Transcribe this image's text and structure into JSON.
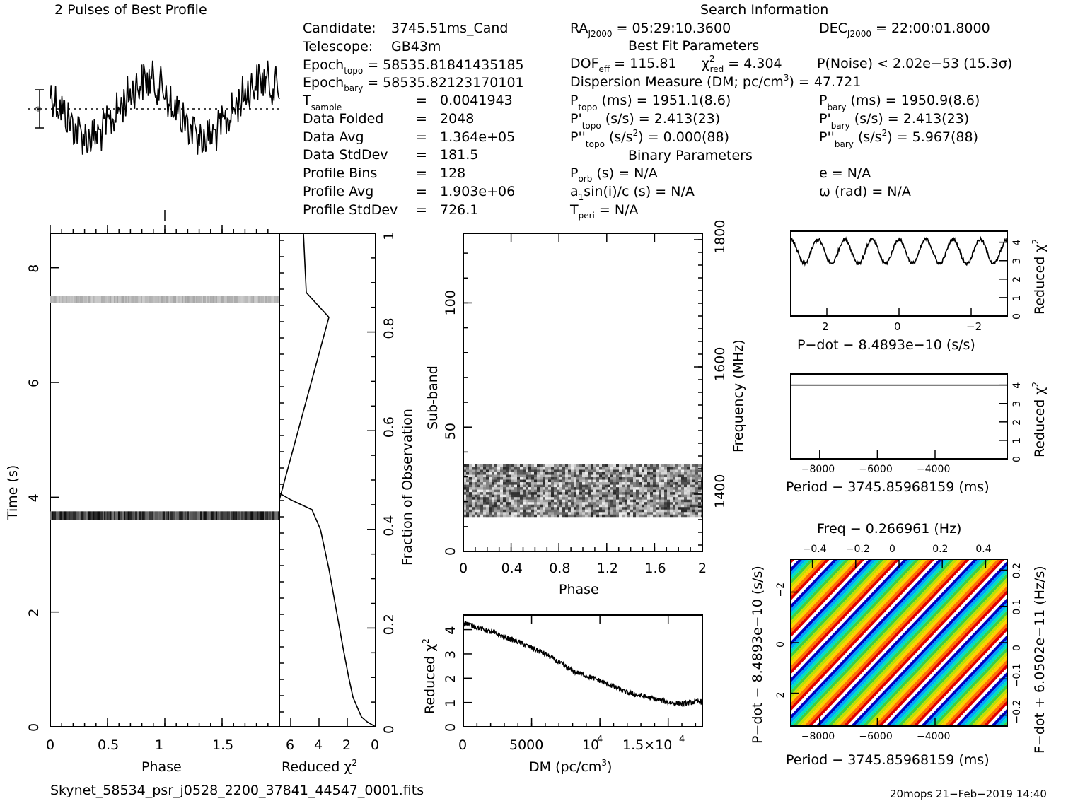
{
  "header": {
    "profile_title": "2 Pulses of Best Profile",
    "search_title": "Search Information",
    "best_fit_title": "Best Fit Parameters",
    "binary_title": "Binary Parameters"
  },
  "info": {
    "candidate": [
      "Candidate:",
      "3745.51ms_Cand"
    ],
    "telescope": [
      "Telescope:",
      "GB43m"
    ],
    "epoch_topo": [
      "Epoch",
      "topo",
      "= 58535.81841435185"
    ],
    "epoch_bary": [
      "Epoch",
      "bary",
      "= 58535.82123170101"
    ],
    "tsample": [
      "T",
      "sample",
      "=",
      "0.0041943"
    ],
    "data_folded": [
      "Data Folded",
      "=",
      "2048"
    ],
    "data_avg": [
      "Data Avg",
      "=",
      "1.364e+05"
    ],
    "data_stddev": [
      "Data StdDev",
      "=",
      "181.5"
    ],
    "profile_bins": [
      "Profile Bins",
      "=",
      "128"
    ],
    "profile_avg": [
      "Profile Avg",
      "=",
      "1.903e+06"
    ],
    "profile_stddev": [
      "Profile StdDev",
      "=",
      "726.1"
    ]
  },
  "search": {
    "ra": [
      "RA",
      "J2000",
      "= 05:29:10.3600"
    ],
    "dec": [
      "DEC",
      "J2000",
      "= 22:00:01.8000"
    ],
    "dof": [
      "DOF",
      "eff",
      "= 115.81"
    ],
    "chi": [
      "χ",
      "2",
      "red",
      "= 4.304"
    ],
    "pnoise": "P(Noise) < 2.02e−53   (15.3σ)",
    "dm": [
      "Dispersion Measure (DM; pc/cm",
      "3",
      ") = 47.721"
    ],
    "ptopo": [
      "P",
      "topo",
      " (ms) =  1951.1(8.6)"
    ],
    "pbary": [
      "P",
      "bary",
      " (ms) =  1950.9(8.6)"
    ],
    "pdtopo": [
      "P'",
      "topo",
      " (s/s) =  2.413(23)"
    ],
    "pdbary": [
      "P'",
      "bary",
      " (s/s) =  2.413(23)"
    ],
    "pddtopo": [
      "P''",
      "topo",
      " (s/s",
      "2",
      ") =  0.000(88)"
    ],
    "pddbary": [
      "P''",
      "bary",
      " (s/s",
      "2",
      ") =  5.967(88)"
    ],
    "porb": [
      "P",
      "orb",
      " (s) = N/A"
    ],
    "ecc": "e = N/A",
    "a1": [
      "a",
      "1",
      "sin(i)/c (s) = N/A"
    ],
    "omega": "ω (rad) = N/A",
    "tperi": [
      "T",
      "peri",
      " = N/A"
    ]
  },
  "footer": {
    "filename": "Skynet_58534_psr_j0528_2200_37841_44547_0001.fits",
    "stamp": "20mops 21−Feb−2019 14:40"
  },
  "chart_data": [
    {
      "name": "profile",
      "type": "line",
      "title": "2 Pulses of Best Profile",
      "xlim": [
        0,
        2
      ],
      "description_values": "two repeated noisy pulses, bins 0-256",
      "seed": 7
    },
    {
      "name": "time_phase",
      "type": "heatmap",
      "xlabel": "Phase",
      "ylabel": "Time (s)",
      "xlim": [
        0,
        2
      ],
      "ylim": [
        0,
        8.6
      ],
      "xticks": [
        "0",
        "0.5",
        "1",
        "1.5"
      ],
      "yticks": [
        "0",
        "2",
        "4",
        "6",
        "8"
      ],
      "bands": [
        {
          "t": 7.45,
          "intensity": 0.35
        },
        {
          "t": 3.68,
          "intensity": 0.95
        }
      ]
    },
    {
      "name": "chi_vs_fraction",
      "type": "line",
      "xlabel": [
        "Reduced ",
        "χ",
        "2"
      ],
      "ylabel": "Fraction of Observation",
      "xlim": [
        6.8,
        0
      ],
      "ylim": [
        0,
        1
      ],
      "xticks": [
        "6",
        "4",
        "2",
        "0"
      ],
      "yticks": [
        "0",
        "0.2",
        "0.4",
        "0.6",
        "0.8",
        "1"
      ],
      "x": [
        0,
        0.6,
        1.0,
        1.3,
        1.6,
        1.9,
        2.3,
        2.8,
        3.3,
        3.9,
        4.5,
        6.0,
        7.2,
        6.8,
        3.3,
        4.9,
        5.1
      ],
      "y": [
        0,
        0.01,
        0.02,
        0.04,
        0.06,
        0.1,
        0.16,
        0.24,
        0.32,
        0.4,
        0.44,
        0.46,
        0.48,
        0.46,
        0.83,
        0.88,
        1.0
      ]
    },
    {
      "name": "subband_phase",
      "type": "heatmap",
      "xlabel": "Phase",
      "ylabel": "Sub-band",
      "right_label": "Frequency (MHz)",
      "xlim": [
        0,
        2
      ],
      "ylim": [
        0,
        128
      ],
      "xticks": [
        "0",
        "0.4",
        "0.8",
        "1.2",
        "1.6",
        "2"
      ],
      "yticks": [
        "0",
        "50",
        "100"
      ],
      "rticks": [
        "1400",
        "1600",
        "1800"
      ],
      "active_band": [
        14,
        35
      ]
    },
    {
      "name": "chi_vs_dm",
      "type": "line",
      "xlabel": [
        "DM (pc/cm",
        "3",
        ")"
      ],
      "ylabel": [
        "Reduced ",
        "χ",
        "2"
      ],
      "xlim": [
        0,
        17500
      ],
      "ylim": [
        0,
        4.6
      ],
      "xticks": [
        "0",
        "5000",
        "10",
        "1.5×10"
      ],
      "yticks": [
        "0",
        "1",
        "2",
        "3",
        "4"
      ],
      "x": [
        0,
        2000,
        4000,
        6000,
        8000,
        10000,
        12000,
        14000,
        15000,
        16000,
        17500
      ],
      "y": [
        4.3,
        3.9,
        3.5,
        3.0,
        2.3,
        1.9,
        1.4,
        1.15,
        1.0,
        0.95,
        1.05
      ]
    },
    {
      "name": "chi_vs_pdot",
      "type": "line",
      "xlabel": "P−dot − 8.4893e−10 (s/s)",
      "ylabel": [
        "Reduced ",
        "χ",
        "2"
      ],
      "xlim": [
        3,
        -3
      ],
      "ylim": [
        0,
        4.6
      ],
      "xticks": [
        "2",
        "0",
        "−2"
      ],
      "yticks": [
        "0",
        "1",
        "2",
        "3",
        "4"
      ],
      "oscillations": 8,
      "mean": 3.5,
      "amplitude": 0.65
    },
    {
      "name": "chi_vs_period",
      "type": "line",
      "xlabel": "Period − 3745.85968159 (ms)",
      "ylabel": [
        "Reduced ",
        "χ",
        "2"
      ],
      "xlim": [
        -9000,
        -1500
      ],
      "ylim": [
        0,
        4.6
      ],
      "xticks": [
        "−8000",
        "−6000",
        "−4000"
      ],
      "yticks": [
        "0",
        "1",
        "2",
        "3",
        "4"
      ],
      "constant": 4.0
    },
    {
      "name": "pdot_period_map",
      "type": "heatmap",
      "top_label": "Freq − 0.266961 (Hz)",
      "xlabel": "Period − 3745.85968159 (ms)",
      "ylabel": "P−dot − 8.4893e−10 (s/s)",
      "right_label": "F−dot + 6.0502e−11 (Hz/s)",
      "xticks": [
        "−8000",
        "−6000",
        "−4000"
      ],
      "top_ticks": [
        "−0.4",
        "−0.2",
        "0",
        "0.2",
        "0.4"
      ],
      "yticks": [
        "−2",
        "0",
        "2"
      ],
      "rticks": [
        "0.2",
        "0.1",
        "0",
        "−0.1",
        "−0.2"
      ],
      "colors": [
        "#0000c0",
        "#00a0ff",
        "#00e0c0",
        "#40d040",
        "#c0e000",
        "#ffd000",
        "#ff7000",
        "#e00000",
        "#ffffff"
      ]
    }
  ]
}
